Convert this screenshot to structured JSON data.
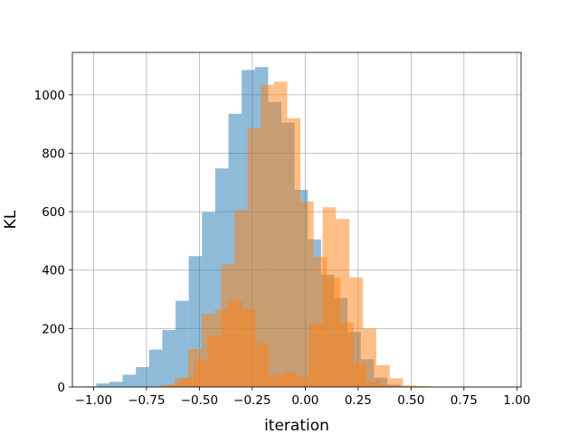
{
  "chart_data": {
    "type": "histogram",
    "title": "",
    "xlabel": "iteration",
    "ylabel": "KL",
    "xlim": [
      -1.1,
      1.02
    ],
    "ylim": [
      0,
      1145
    ],
    "xticks": [
      -1.0,
      -0.75,
      -0.5,
      -0.25,
      0.0,
      0.25,
      0.5,
      0.75,
      1.0
    ],
    "xtick_labels": [
      "−1.00",
      "−0.75",
      "−0.50",
      "−0.25",
      "0.00",
      "0.25",
      "0.50",
      "0.75",
      "1.00"
    ],
    "yticks": [
      0,
      200,
      400,
      600,
      800,
      1000
    ],
    "ytick_labels": [
      "0",
      "200",
      "400",
      "600",
      "800",
      "1000"
    ],
    "grid": true,
    "legend": "none",
    "series": [
      {
        "color": "#1f77b4",
        "alpha": 0.5,
        "bin_start": -1.05,
        "bin_width": 0.0625,
        "values": [
          2,
          12,
          18,
          42,
          68,
          128,
          195,
          295,
          448,
          598,
          748,
          935,
          1085,
          1095,
          975,
          905,
          675,
          505,
          385,
          305,
          188,
          95,
          32,
          8,
          2,
          1
        ]
      },
      {
        "color": "#ff7f0e",
        "alpha": 0.5,
        "bin_start": -0.71,
        "bin_width": 0.0625,
        "values": [
          3,
          8,
          30,
          90,
          175,
          420,
          605,
          885,
          1035,
          1045,
          920,
          635,
          445,
          375,
          220,
          80,
          18,
          6,
          2,
          0
        ]
      },
      {
        "color": "#ff7f0e",
        "alpha": 0.5,
        "bin_start": -0.68,
        "bin_width": 0.0635,
        "values": [
          8,
          30,
          130,
          250,
          265,
          295,
          265,
          150,
          40,
          50,
          35,
          215,
          615,
          575,
          375,
          200,
          75,
          30,
          5,
          3
        ]
      }
    ]
  }
}
